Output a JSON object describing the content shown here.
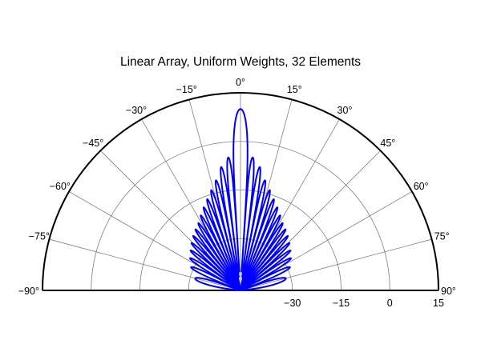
{
  "chart_data": {
    "type": "polar",
    "title": "Linear Array, Uniform Weights, 32 Elements",
    "angle_range_deg": [
      -90,
      90
    ],
    "angle_ticks": [
      -90,
      -75,
      -60,
      -45,
      -30,
      -15,
      0,
      15,
      30,
      45,
      60,
      75,
      90
    ],
    "angle_tick_labels": [
      "−90°",
      "−75°",
      "−60°",
      "−45°",
      "−30°",
      "−15°",
      "0°",
      "15°",
      "30°",
      "45°",
      "60°",
      "75°",
      "90°"
    ],
    "radial_range_db": [
      -46,
      15
    ],
    "radial_ticks": [
      -30,
      -15,
      0,
      15
    ],
    "radial_tick_labels": [
      "−30",
      "−15",
      "0",
      "15"
    ],
    "grid": true,
    "series": [
      {
        "elements": 32,
        "weights": "uniform",
        "peak_db": 10,
        "sidelobe_envelope_db": [
          {
            "angle": 4,
            "db": -3.5
          },
          {
            "angle": 6,
            "db": -5.5
          },
          {
            "angle": 9,
            "db": -7.5
          },
          {
            "angle": 11,
            "db": -10
          },
          {
            "angle": 15,
            "db": -13
          },
          {
            "angle": 20,
            "db": -16
          },
          {
            "angle": 26,
            "db": -19
          },
          {
            "angle": 32,
            "db": -21.5
          },
          {
            "angle": 40,
            "db": -23.5
          },
          {
            "angle": 50,
            "db": -26
          },
          {
            "angle": 62,
            "db": -28.5
          },
          {
            "angle": 75,
            "db": -31.5
          },
          {
            "angle": 90,
            "db": -34
          }
        ]
      }
    ]
  },
  "colors": {
    "series": "#0000ff",
    "grid": "#808080",
    "outline": "#000000",
    "background": "#ffffff"
  }
}
